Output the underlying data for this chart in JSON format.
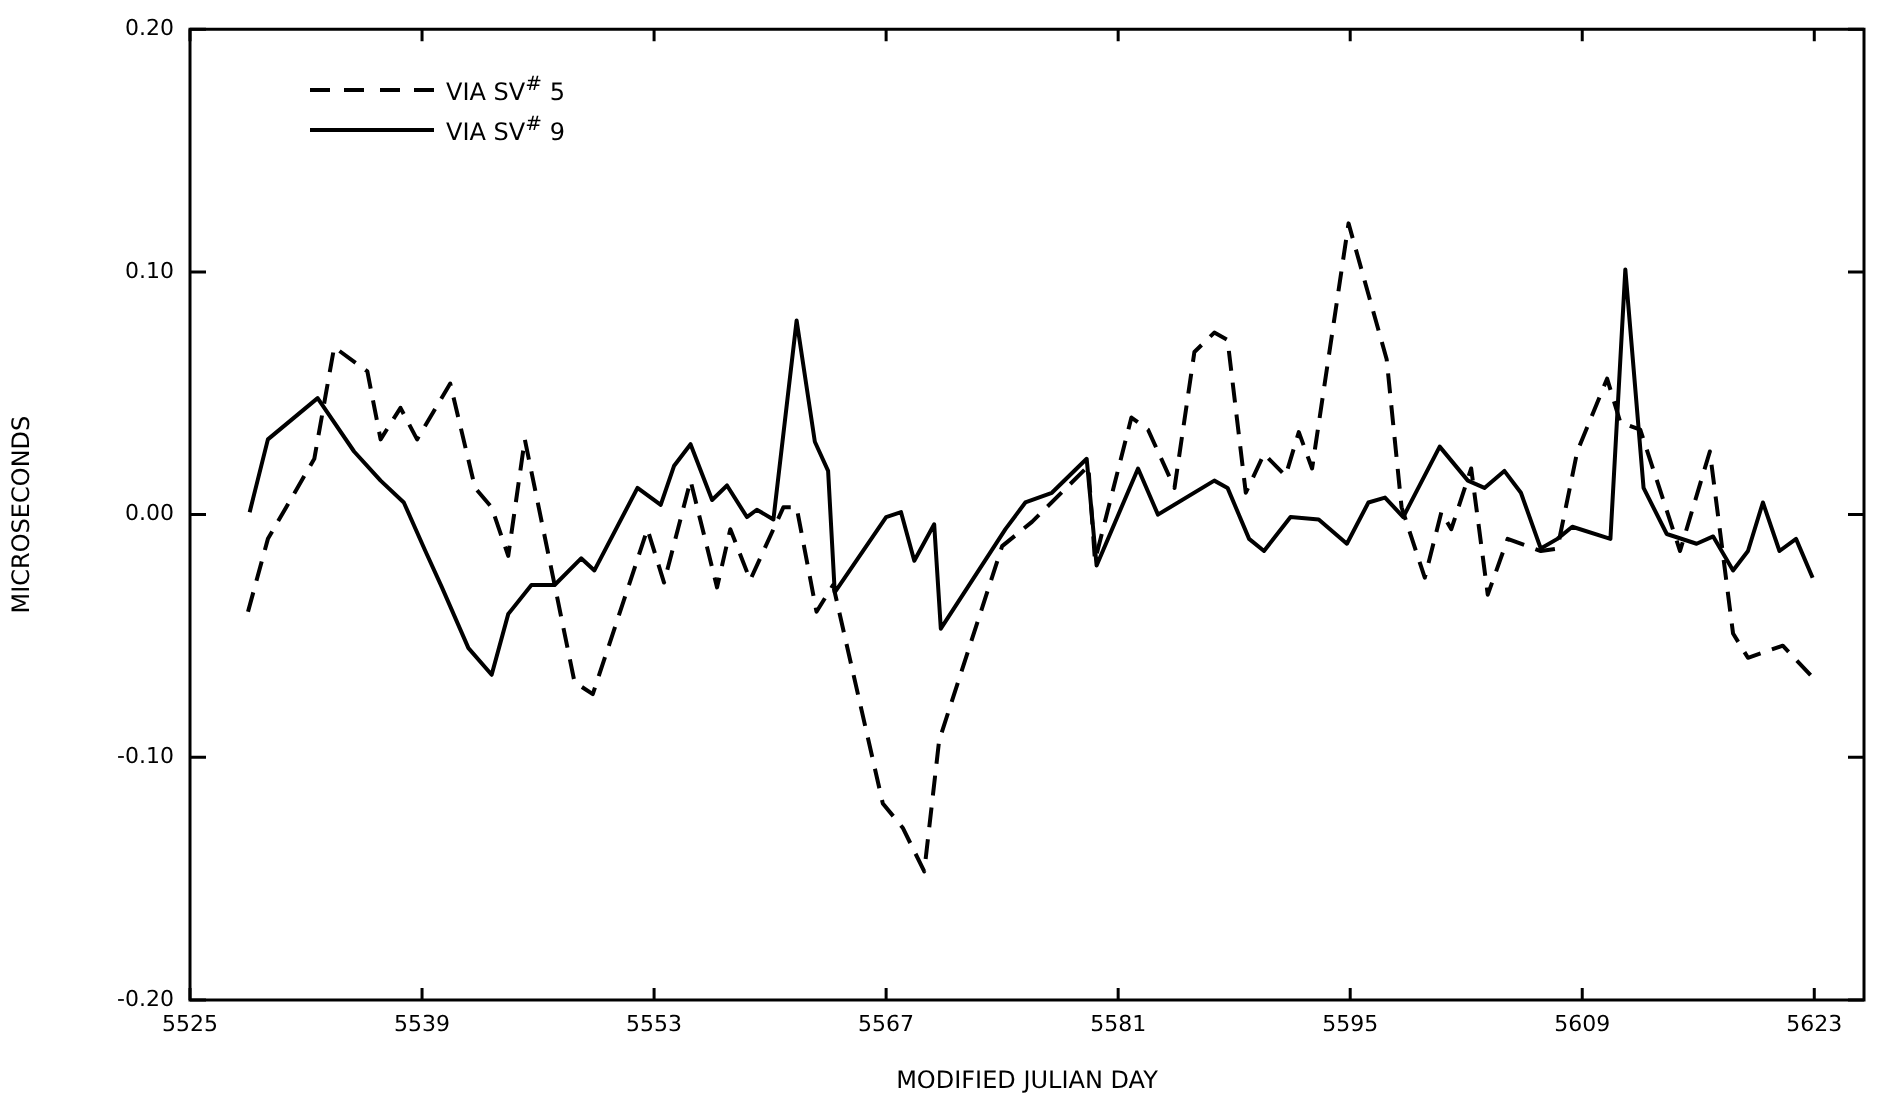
{
  "chart_data": {
    "type": "line",
    "xlabel": "MODIFIED JULIAN DAY",
    "ylabel": "MICROSECONDS",
    "xlim": [
      5525,
      5626
    ],
    "xticks": [
      5525,
      5539,
      5553,
      5567,
      5581,
      5595,
      5609,
      5623
    ],
    "ylim": [
      -0.2,
      0.2
    ],
    "yticks": [
      {
        "value": -0.2,
        "label": "-0.20"
      },
      {
        "value": -0.1,
        "label": "-0.10"
      },
      {
        "value": 0,
        "label": "0.00"
      },
      {
        "value": 0.1,
        "label": "0.10"
      },
      {
        "value": 0.2,
        "label": "0.20"
      }
    ],
    "grid": false,
    "legend": "top left",
    "marker": "none",
    "series": [
      {
        "name": "VIA SV$^{#}$ 5",
        "color": "#000000",
        "line_style": "dashed",
        "x": [
          5528.5,
          5529.7,
          5532.5,
          5533.7,
          5535.7,
          5536.5,
          5537.7,
          5538.7,
          5540.7,
          5542.2,
          5543.2,
          5544.2,
          5545.2,
          5548.2,
          5549.3,
          5552.6,
          5553.6,
          5555.2,
          5556.8,
          5557.6,
          5558.8,
          5560.8,
          5561.6,
          5562.8,
          5563.8,
          5566.8,
          5568.0,
          5569.3,
          5570.2,
          5574.0,
          5575.8,
          5579.2,
          5579.6,
          5581.8,
          5582.8,
          5584.4,
          5585.6,
          5586.8,
          5587.6,
          5588.7,
          5589.8,
          5591.1,
          5591.9,
          5592.7,
          5594.9,
          5597.2,
          5598.1,
          5599.5,
          5600.5,
          5601.1,
          5602.3,
          5603.3,
          5604.5,
          5606.5,
          5607.5,
          5608.7,
          5610.5,
          5611.3,
          5612.5,
          5614.9,
          5616.7,
          5618.1,
          5619.0,
          5621.1,
          5622.9
        ],
        "values": [
          -0.04,
          -0.01,
          0.023,
          0.069,
          0.059,
          0.031,
          0.044,
          0.031,
          0.054,
          0.011,
          0.003,
          -0.017,
          0.031,
          -0.069,
          -0.074,
          -0.006,
          -0.028,
          0.014,
          -0.03,
          -0.006,
          -0.027,
          0.003,
          0.003,
          -0.04,
          -0.029,
          -0.119,
          -0.129,
          -0.147,
          -0.093,
          -0.013,
          -0.003,
          0.02,
          -0.019,
          0.04,
          0.035,
          0.011,
          0.067,
          0.075,
          0.072,
          0.009,
          0.025,
          0.016,
          0.034,
          0.019,
          0.12,
          0.064,
          0.003,
          -0.026,
          0.001,
          -0.006,
          0.019,
          -0.033,
          -0.01,
          -0.015,
          -0.014,
          0.026,
          0.056,
          0.038,
          0.035,
          -0.015,
          0.026,
          -0.049,
          -0.059,
          -0.054,
          -0.067
        ]
      },
      {
        "name": "VIA SV$^{#}$ 9",
        "color": "#000000",
        "line_style": "solid",
        "x": [
          5528.6,
          5529.7,
          5532.7,
          5534.9,
          5536.5,
          5537.9,
          5539.2,
          5540.2,
          5541.8,
          5543.2,
          5544.2,
          5545.6,
          5547.0,
          5548.6,
          5549.4,
          5552.0,
          5553.4,
          5554.2,
          5555.2,
          5556.5,
          5557.4,
          5558.6,
          5559.2,
          5560.2,
          5561.6,
          5562.7,
          5563.5,
          5563.9,
          5567.0,
          5567.9,
          5568.7,
          5569.9,
          5570.3,
          5574.2,
          5575.4,
          5577.0,
          5579.1,
          5579.7,
          5582.2,
          5583.4,
          5586.8,
          5587.6,
          5588.9,
          5589.8,
          5591.4,
          5593.1,
          5594.8,
          5596.1,
          5597.1,
          5598.2,
          5600.4,
          5602.1,
          5603.1,
          5604.3,
          5605.3,
          5606.5,
          5607.5,
          5608.4,
          5610.7,
          5611.6,
          5612.7,
          5614.1,
          5615.9,
          5616.9,
          5618.1,
          5619.0,
          5619.9,
          5620.9,
          5621.9,
          5622.9
        ],
        "values": [
          0.001,
          0.031,
          0.048,
          0.026,
          0.014,
          0.005,
          -0.015,
          -0.03,
          -0.055,
          -0.066,
          -0.041,
          -0.029,
          -0.029,
          -0.018,
          -0.023,
          0.011,
          0.004,
          0.02,
          0.029,
          0.006,
          0.012,
          -0.001,
          0.002,
          -0.002,
          0.08,
          0.03,
          0.018,
          -0.032,
          -0.001,
          0.001,
          -0.019,
          -0.004,
          -0.047,
          -0.006,
          0.005,
          0.009,
          0.023,
          -0.021,
          0.019,
          0.0,
          0.014,
          0.011,
          -0.01,
          -0.015,
          -0.001,
          -0.002,
          -0.012,
          0.005,
          0.007,
          -0.001,
          0.028,
          0.014,
          0.011,
          0.018,
          0.009,
          -0.014,
          -0.01,
          -0.005,
          -0.01,
          0.101,
          0.011,
          -0.008,
          -0.012,
          -0.009,
          -0.023,
          -0.015,
          0.005,
          -0.015,
          -0.01,
          -0.026
        ]
      }
    ]
  }
}
